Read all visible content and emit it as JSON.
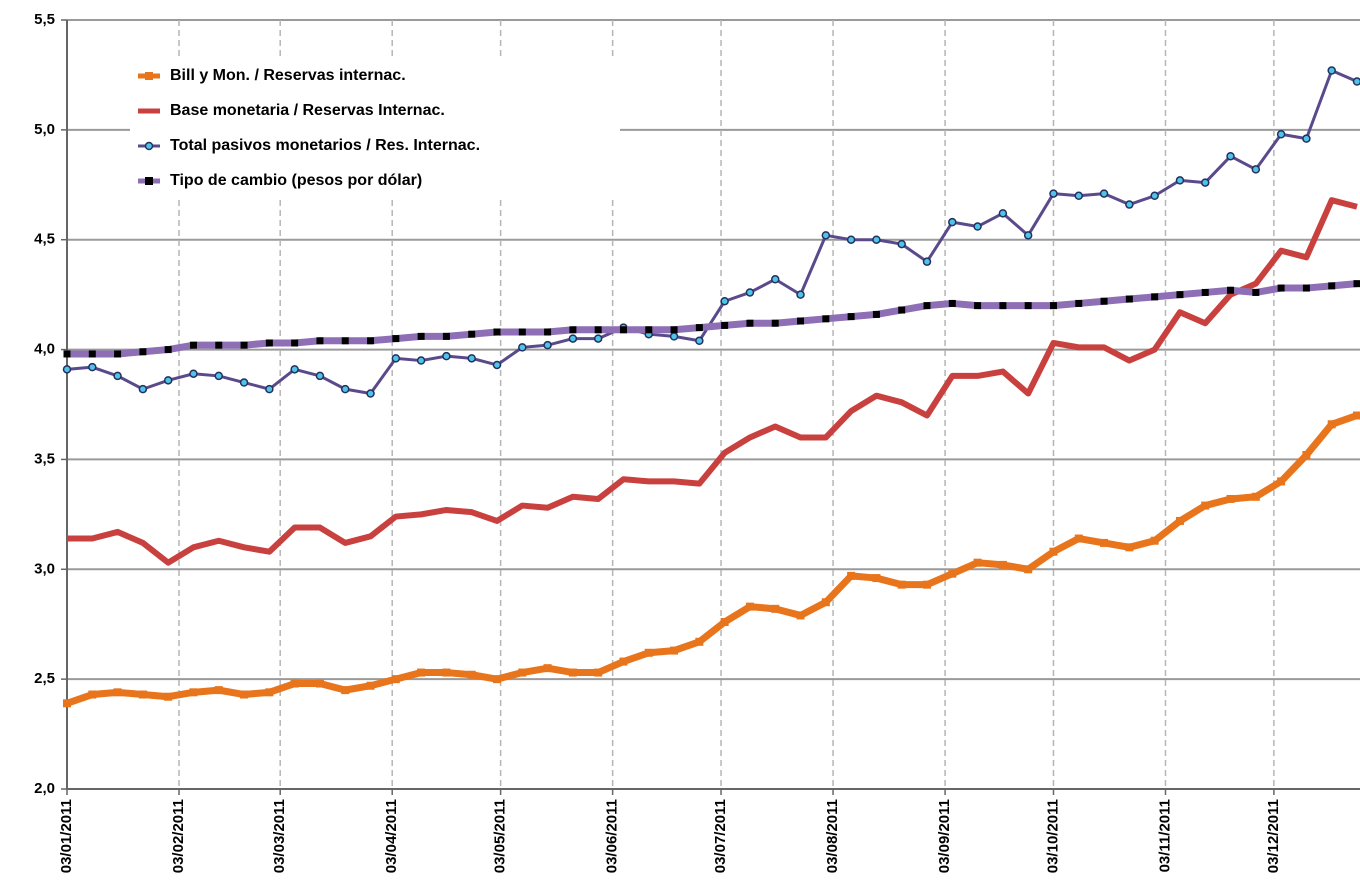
{
  "chart_data": {
    "type": "line",
    "x": [
      "03/01/2011",
      "10/01/2011",
      "17/01/2011",
      "24/01/2011",
      "31/01/2011",
      "07/02/2011",
      "14/02/2011",
      "21/02/2011",
      "28/02/2011",
      "07/03/2011",
      "14/03/2011",
      "21/03/2011",
      "28/03/2011",
      "04/04/2011",
      "11/04/2011",
      "18/04/2011",
      "25/04/2011",
      "02/05/2011",
      "09/05/2011",
      "16/05/2011",
      "23/05/2011",
      "30/05/2011",
      "06/06/2011",
      "13/06/2011",
      "20/06/2011",
      "27/06/2011",
      "04/07/2011",
      "11/07/2011",
      "18/07/2011",
      "25/07/2011",
      "01/08/2011",
      "08/08/2011",
      "15/08/2011",
      "22/08/2011",
      "29/08/2011",
      "05/09/2011",
      "12/09/2011",
      "19/09/2011",
      "26/09/2011",
      "03/10/2011",
      "10/10/2011",
      "17/10/2011",
      "24/10/2011",
      "31/10/2011",
      "07/11/2011",
      "14/11/2011",
      "21/11/2011",
      "28/11/2011",
      "05/12/2011",
      "12/12/2011",
      "19/12/2011",
      "26/12/2011"
    ],
    "series": [
      {
        "name": "Bill y Mon. / Reservas internac.",
        "color": "#e8741c",
        "values": [
          2.39,
          2.43,
          2.44,
          2.43,
          2.42,
          2.44,
          2.45,
          2.43,
          2.44,
          2.48,
          2.48,
          2.45,
          2.47,
          2.5,
          2.53,
          2.53,
          2.52,
          2.5,
          2.53,
          2.55,
          2.53,
          2.53,
          2.58,
          2.62,
          2.63,
          2.67,
          2.76,
          2.83,
          2.82,
          2.79,
          2.85,
          2.97,
          2.96,
          2.93,
          2.93,
          2.98,
          3.03,
          3.02,
          3.0,
          3.08,
          3.14,
          3.12,
          3.1,
          3.13,
          3.22,
          3.29,
          3.32,
          3.33,
          3.4,
          3.52,
          3.66,
          3.7
        ]
      },
      {
        "name": "Base monetaria / Reservas Internac.",
        "color": "#c9413f",
        "values": [
          3.14,
          3.14,
          3.17,
          3.12,
          3.03,
          3.1,
          3.13,
          3.1,
          3.08,
          3.19,
          3.19,
          3.12,
          3.15,
          3.24,
          3.25,
          3.27,
          3.26,
          3.22,
          3.29,
          3.28,
          3.33,
          3.32,
          3.41,
          3.4,
          3.4,
          3.39,
          3.53,
          3.6,
          3.65,
          3.6,
          3.6,
          3.72,
          3.79,
          3.76,
          3.7,
          3.88,
          3.88,
          3.9,
          3.8,
          4.03,
          4.01,
          4.01,
          3.95,
          4.0,
          4.17,
          4.12,
          4.25,
          4.3,
          4.45,
          4.42,
          4.68,
          4.65
        ]
      },
      {
        "name": "Total pasivos monetarios / Res. Internac.",
        "color": "#5b4a8b",
        "values": [
          3.91,
          3.92,
          3.88,
          3.82,
          3.86,
          3.89,
          3.88,
          3.85,
          3.82,
          3.91,
          3.88,
          3.82,
          3.8,
          3.96,
          3.95,
          3.97,
          3.96,
          3.93,
          4.01,
          4.02,
          4.05,
          4.05,
          4.1,
          4.07,
          4.06,
          4.04,
          4.22,
          4.26,
          4.32,
          4.25,
          4.52,
          4.5,
          4.5,
          4.48,
          4.4,
          4.58,
          4.56,
          4.62,
          4.52,
          4.71,
          4.7,
          4.71,
          4.66,
          4.7,
          4.77,
          4.76,
          4.88,
          4.82,
          4.98,
          4.96,
          5.27,
          5.22
        ]
      },
      {
        "name": "Tipo de cambio (pesos por dólar)",
        "color": "#8e6fb5",
        "values": [
          3.98,
          3.98,
          3.98,
          3.99,
          4.0,
          4.02,
          4.02,
          4.02,
          4.03,
          4.03,
          4.04,
          4.04,
          4.04,
          4.05,
          4.06,
          4.06,
          4.07,
          4.08,
          4.08,
          4.08,
          4.09,
          4.09,
          4.09,
          4.09,
          4.09,
          4.1,
          4.11,
          4.12,
          4.12,
          4.13,
          4.14,
          4.15,
          4.16,
          4.18,
          4.2,
          4.21,
          4.2,
          4.2,
          4.2,
          4.2,
          4.21,
          4.22,
          4.23,
          4.24,
          4.25,
          4.26,
          4.27,
          4.26,
          4.28,
          4.28,
          4.29,
          4.3
        ]
      }
    ],
    "xlim": [
      "03/01/2011",
      "26/12/2011"
    ],
    "xticks": [
      "03/01/2011",
      "03/02/2011",
      "03/03/2011",
      "03/04/2011",
      "03/05/2011",
      "03/06/2011",
      "03/07/2011",
      "03/08/2011",
      "03/09/2011",
      "03/10/2011",
      "03/11/2011",
      "03/12/2011"
    ],
    "ylim": [
      2.0,
      5.5
    ],
    "yticks": [
      {
        "value": 2.0,
        "label": "2,0"
      },
      {
        "value": 2.5,
        "label": "2,5"
      },
      {
        "value": 3.0,
        "label": "3,0"
      },
      {
        "value": 3.5,
        "label": "3,5"
      },
      {
        "value": 4.0,
        "label": "4,0"
      },
      {
        "value": 4.5,
        "label": "4,5"
      },
      {
        "value": 5.0,
        "label": "5,0"
      },
      {
        "value": 5.5,
        "label": "5,5"
      }
    ],
    "grid": true,
    "legend": "top-left"
  }
}
